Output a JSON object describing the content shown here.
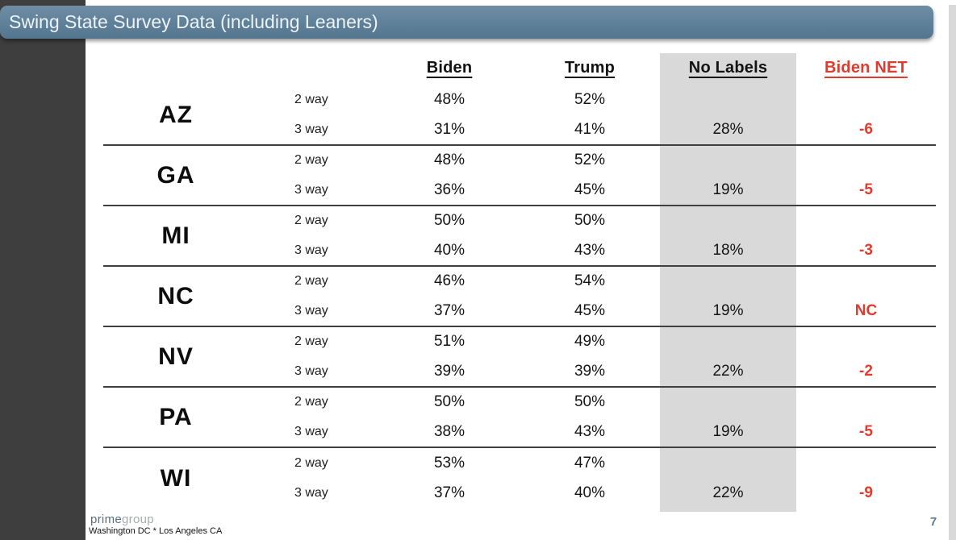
{
  "slide": {
    "title": "Swing State Survey Data (including Leaners)",
    "page_number": "7"
  },
  "table": {
    "headers": {
      "biden": "Biden",
      "trump": "Trump",
      "no_labels": "No Labels",
      "biden_net": "Biden NET"
    },
    "row_labels": {
      "two_way": "2 way",
      "three_way": "3 way"
    },
    "states": [
      {
        "state": "AZ",
        "two_way": {
          "biden": "48%",
          "trump": "52%"
        },
        "three_way": {
          "biden": "31%",
          "trump": "41%",
          "no_labels": "28%"
        },
        "biden_net": "-6"
      },
      {
        "state": "GA",
        "two_way": {
          "biden": "48%",
          "trump": "52%"
        },
        "three_way": {
          "biden": "36%",
          "trump": "45%",
          "no_labels": "19%"
        },
        "biden_net": "-5"
      },
      {
        "state": "MI",
        "two_way": {
          "biden": "50%",
          "trump": "50%"
        },
        "three_way": {
          "biden": "40%",
          "trump": "43%",
          "no_labels": "18%"
        },
        "biden_net": "-3"
      },
      {
        "state": "NC",
        "two_way": {
          "biden": "46%",
          "trump": "54%"
        },
        "three_way": {
          "biden": "37%",
          "trump": "45%",
          "no_labels": "19%"
        },
        "biden_net": "NC"
      },
      {
        "state": "NV",
        "two_way": {
          "biden": "51%",
          "trump": "49%"
        },
        "three_way": {
          "biden": "39%",
          "trump": "39%",
          "no_labels": "22%"
        },
        "biden_net": "-2"
      },
      {
        "state": "PA",
        "two_way": {
          "biden": "50%",
          "trump": "50%"
        },
        "three_way": {
          "biden": "38%",
          "trump": "43%",
          "no_labels": "19%"
        },
        "biden_net": "-5"
      },
      {
        "state": "WI",
        "two_way": {
          "biden": "53%",
          "trump": "47%"
        },
        "three_way": {
          "biden": "37%",
          "trump": "40%",
          "no_labels": "22%"
        },
        "biden_net": "-9"
      }
    ]
  },
  "footer": {
    "logo_prime": "prime",
    "logo_group": "group",
    "locations": "Washington DC * Los Angeles CA"
  },
  "colors": {
    "title_bar_blue": "#5e8099",
    "accent_red": "#e03b2e",
    "highlight_gray": "#d9d9d9",
    "sidebar_dark": "#3e3e3e"
  }
}
